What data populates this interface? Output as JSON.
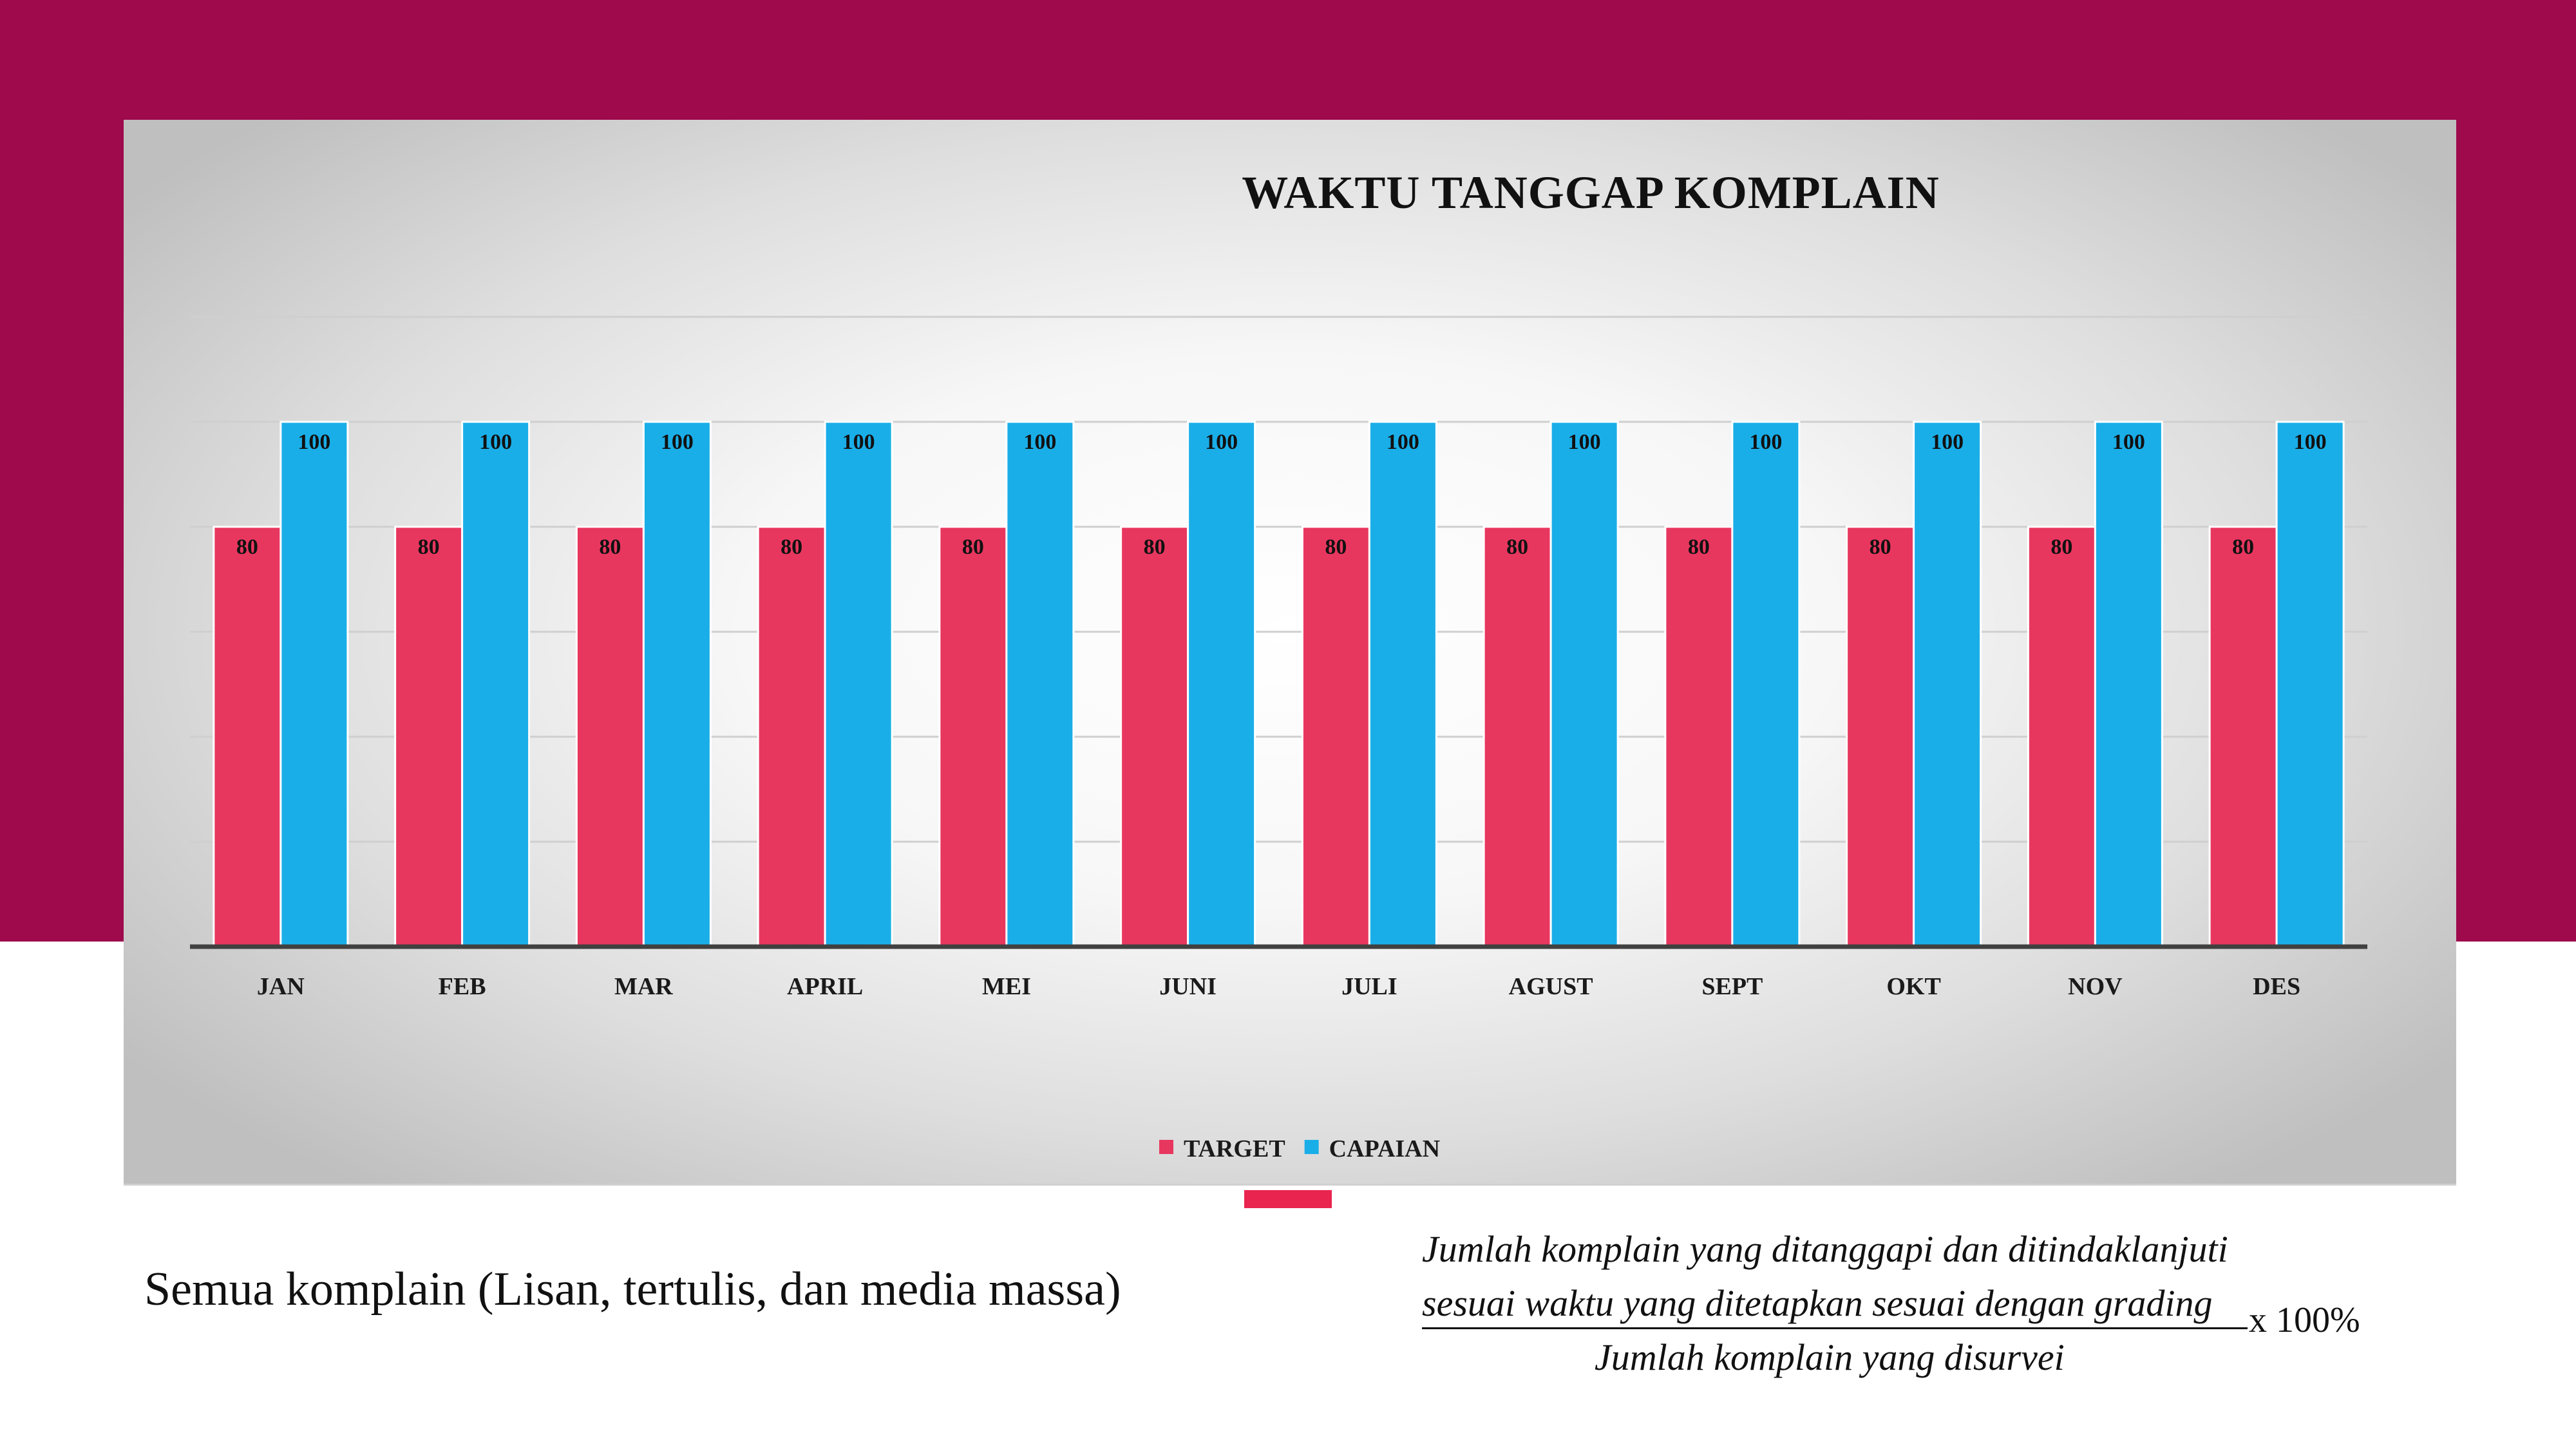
{
  "chart_data": {
    "type": "bar",
    "title": "WAKTU TANGGAP KOMPLAIN",
    "categories": [
      "JAN",
      "FEB",
      "MAR",
      "APRIL",
      "MEI",
      "JUNI",
      "JULI",
      "AGUST",
      "SEPT",
      "OKT",
      "NOV",
      "DES"
    ],
    "series": [
      {
        "name": "TARGET",
        "color": "#e8375f",
        "values": [
          80,
          80,
          80,
          80,
          80,
          80,
          80,
          80,
          80,
          80,
          80,
          80
        ]
      },
      {
        "name": "CAPAIAN",
        "color": "#1aaee8",
        "values": [
          100,
          100,
          100,
          100,
          100,
          100,
          100,
          100,
          100,
          100,
          100,
          100
        ]
      }
    ],
    "ylim": [
      0,
      120
    ],
    "grid": true,
    "legend": "bottom-center",
    "data_labels": true
  },
  "caption": "Semua komplain (Lisan, tertulis, dan media massa)",
  "formula": {
    "numerator_line1": "Jumlah komplain yang ditanggapi dan ditindaklanjuti",
    "numerator_line2": "sesuai waktu yang ditetapkan sesuai dengan grading",
    "denominator": "Jumlah komplain yang disurvei",
    "multiplier": "x 100%"
  },
  "colors": {
    "band": "#9e0a4b",
    "accent": "#e8244f"
  }
}
